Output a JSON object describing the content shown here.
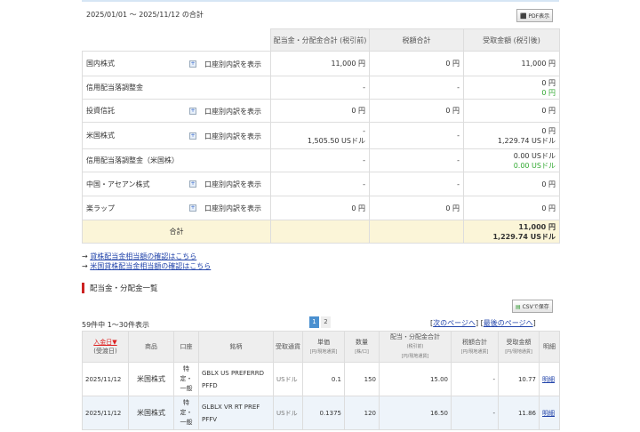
{
  "summary": {
    "period": "2025/01/01 〜 2025/11/12 の合計",
    "pdf_button": "PDF表示",
    "headers": [
      "配当金・分配金合計 (税引前)",
      "税額合計",
      "受取金額 (税引後)"
    ],
    "expand_label": "口座別内訳を表示",
    "rows": [
      {
        "name": "国内株式",
        "gross": "11,000 円",
        "gross2": "",
        "tax": "0 円",
        "net": "11,000 円",
        "net2": ""
      },
      {
        "name": "信用配当落調整金",
        "gross": "-",
        "gross2": "",
        "tax": "-",
        "net": "0 円",
        "net2": "0 円"
      },
      {
        "name": "投資信託",
        "gross": "0 円",
        "gross2": "",
        "tax": "0 円",
        "net": "0 円",
        "net2": ""
      },
      {
        "name": "米国株式",
        "gross": "-",
        "gross2": "1,505.50 USドル",
        "tax": "-",
        "net": "0 円",
        "net2": "1,229.74 USドル"
      },
      {
        "name": "信用配当落調整金（米国株）",
        "gross": "-",
        "gross2": "",
        "tax": "-",
        "net": "0.00 USドル",
        "net2": "0.00 USドル"
      },
      {
        "name": "中国・アセアン株式",
        "gross": "-",
        "gross2": "",
        "tax": "-",
        "net": "0 円",
        "net2": ""
      },
      {
        "name": "楽ラップ",
        "gross": "0 円",
        "gross2": "",
        "tax": "0 円",
        "net": "0 円",
        "net2": ""
      }
    ],
    "total_label": "合計",
    "total_net": "11,000 円",
    "total_net2": "1,229.74 USドル"
  },
  "links": [
    "貸株配当金相当額の確認はこちら",
    "米国貸株配当金相当額の確認はこちら"
  ],
  "list": {
    "title": "配当金・分配金一覧",
    "csv_button": "CSVで保存",
    "count": "59件中 1〜30件表示",
    "pages": [
      "1",
      "2"
    ],
    "next": "次のページへ",
    "last": "最後のページへ",
    "headers": {
      "date": "入金日▼",
      "date_sub": "(受渡日)",
      "product": "商品",
      "account": "口座",
      "name": "銘柄",
      "currency": "受取通貨",
      "unit": "単価",
      "unit_sub": "[円/現地通貨]",
      "qty": "数量",
      "qty_sub": "[株/口]",
      "gross": "配当・分配金合計",
      "gross_sub1": "(税引前)",
      "gross_sub2": "[円/現地通貨]",
      "tax": "税額合計",
      "tax_sub": "[円/現地通貨]",
      "net": "受取金額",
      "net_sub": "[円/現地通貨]",
      "detail": "明細"
    },
    "rows": [
      {
        "date": "2025/11/12",
        "product": "米国株式",
        "account": "特定・一般",
        "name1": "GBLX US PREFERRD",
        "name2": "PFFD",
        "currency": "USドル",
        "unit": "0.1",
        "qty": "150",
        "gross": "15.00",
        "tax": "-",
        "net": "10.77",
        "detail": "明細"
      },
      {
        "date": "2025/11/12",
        "product": "米国株式",
        "account": "特定・一般",
        "name1": "GLBLX VR RT PREF",
        "name2": "PFFV",
        "currency": "USドル",
        "unit": "0.1375",
        "qty": "120",
        "gross": "16.50",
        "tax": "-",
        "net": "11.86",
        "detail": "明細"
      }
    ]
  }
}
